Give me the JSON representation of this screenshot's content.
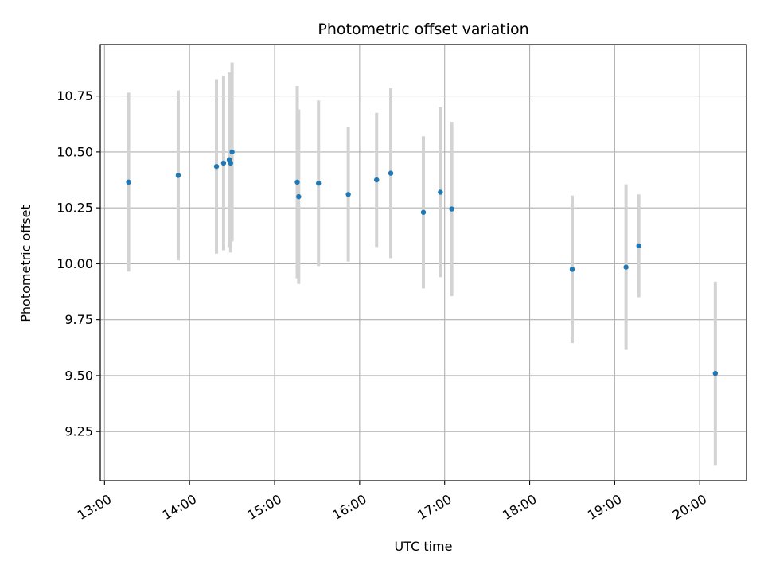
{
  "chart_data": {
    "type": "scatter",
    "title": "Photometric offset variation",
    "xlabel": "UTC time",
    "ylabel": "Photometric offset",
    "xlim": [
      "12:57",
      "20:33"
    ],
    "ylim": [
      9.03,
      10.98
    ],
    "x_ticks": [
      "13:00",
      "14:00",
      "15:00",
      "16:00",
      "17:00",
      "18:00",
      "19:00",
      "20:00"
    ],
    "y_ticks": [
      "9.25",
      "9.50",
      "9.75",
      "10.00",
      "10.25",
      "10.50",
      "10.75"
    ],
    "grid": true,
    "series": [
      {
        "point_color": "#1f77b4",
        "errorbar_color": "#d3d3d3",
        "points": [
          {
            "x": "13:17",
            "y": 10.365,
            "err": 0.4
          },
          {
            "x": "13:52",
            "y": 10.395,
            "err": 0.38
          },
          {
            "x": "14:19",
            "y": 10.435,
            "err": 0.39
          },
          {
            "x": "14:24",
            "y": 10.45,
            "err": 0.39
          },
          {
            "x": "14:28",
            "y": 10.465,
            "err": 0.39
          },
          {
            "x": "14:29",
            "y": 10.45,
            "err": 0.4
          },
          {
            "x": "14:30",
            "y": 10.5,
            "err": 0.4
          },
          {
            "x": "15:16",
            "y": 10.365,
            "err": 0.43
          },
          {
            "x": "15:17",
            "y": 10.3,
            "err": 0.39
          },
          {
            "x": "15:31",
            "y": 10.36,
            "err": 0.37
          },
          {
            "x": "15:52",
            "y": 10.31,
            "err": 0.3
          },
          {
            "x": "16:12",
            "y": 10.375,
            "err": 0.3
          },
          {
            "x": "16:22",
            "y": 10.405,
            "err": 0.38
          },
          {
            "x": "16:45",
            "y": 10.23,
            "err": 0.34
          },
          {
            "x": "16:57",
            "y": 10.32,
            "err": 0.38
          },
          {
            "x": "17:05",
            "y": 10.245,
            "err": 0.39
          },
          {
            "x": "18:30",
            "y": 9.975,
            "err": 0.33
          },
          {
            "x": "19:08",
            "y": 9.985,
            "err": 0.37
          },
          {
            "x": "19:17",
            "y": 10.08,
            "err": 0.23
          },
          {
            "x": "20:11",
            "y": 9.51,
            "err": 0.41
          }
        ]
      }
    ]
  }
}
